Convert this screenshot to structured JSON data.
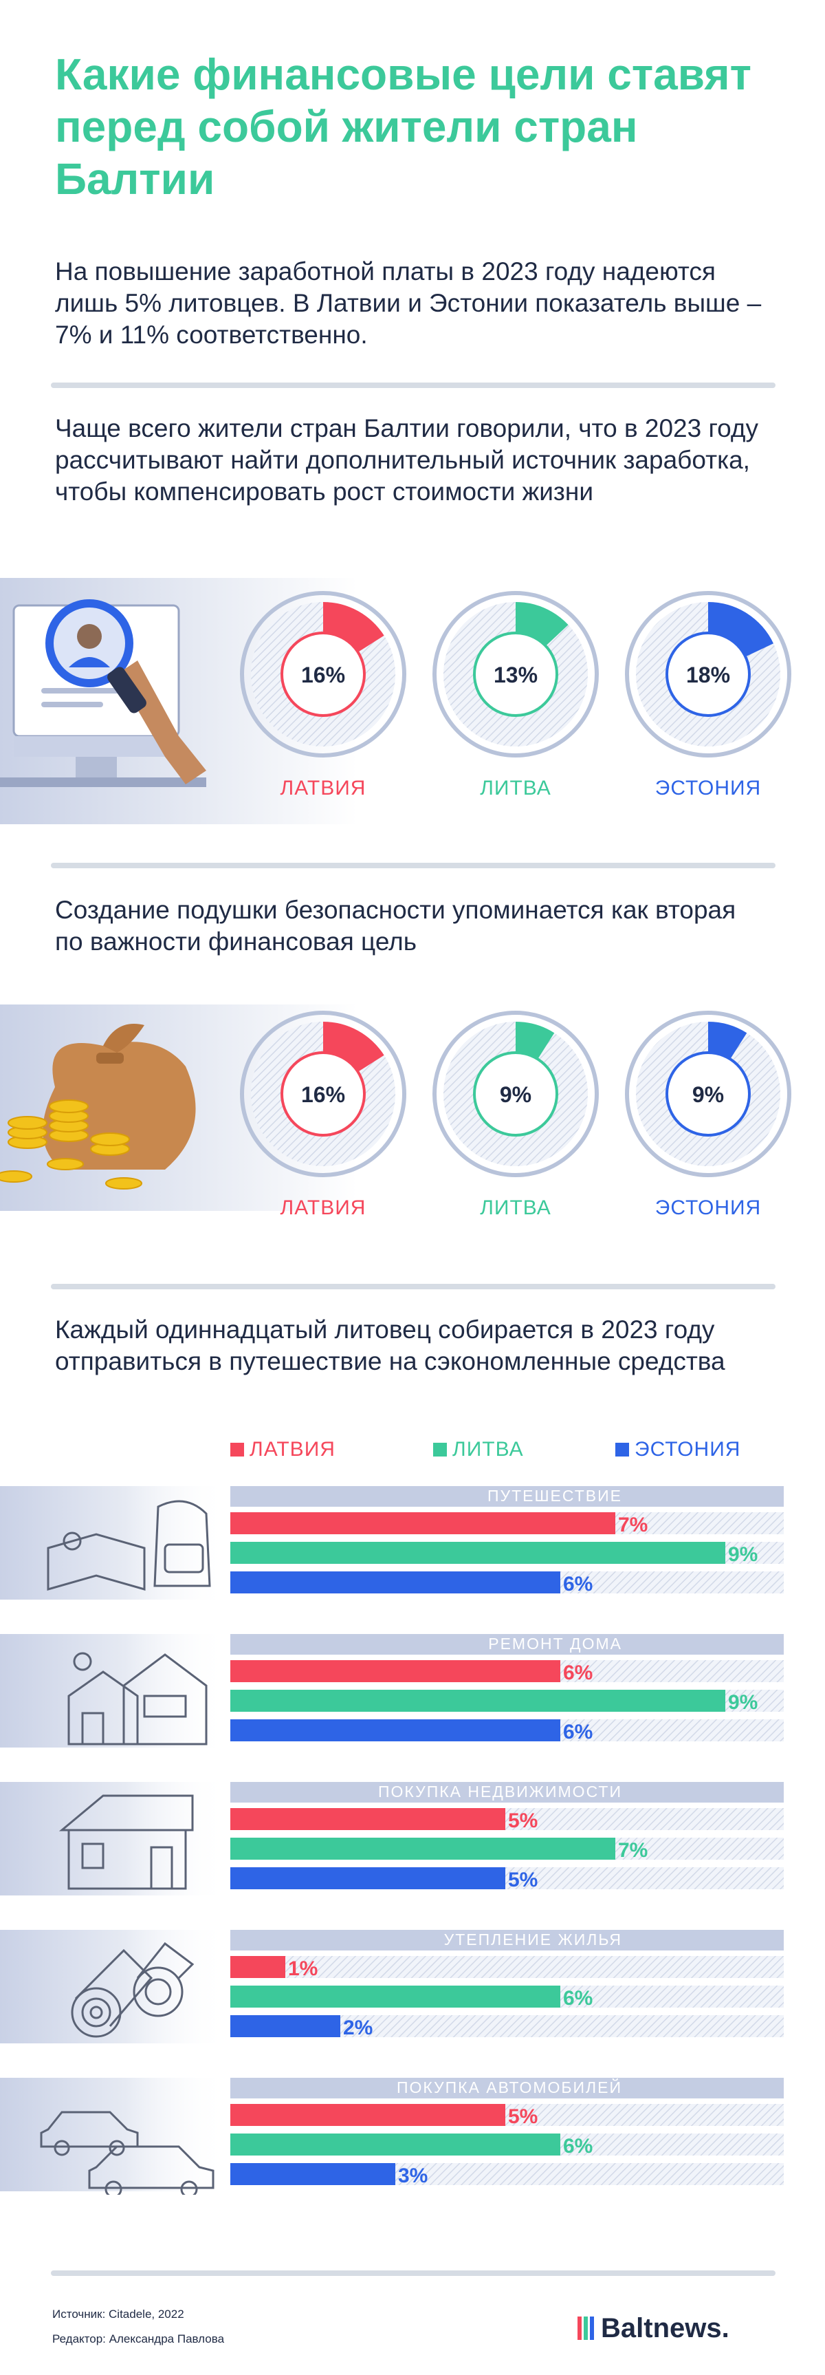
{
  "title": "Какие финансовые цели ставят перед собой жители стран Балтии",
  "lead": "На повышение заработной платы в 2023 году надеются лишь 5% литовцев. В Латвии и Эстонии показатель выше – 7% и 11% соответственно.",
  "section1": {
    "heading": "Чаще всего жители стран Балтии говорили, что в 2023 году рассчитывают найти дополнительный источник заработка, чтобы компенсировать рост стоимости жизни"
  },
  "section2": {
    "heading": "Создание подушки безопасности упоминается как вторая по важности финансовая цель"
  },
  "section3": {
    "heading": "Каждый одиннадцатый литовец собирается в 2023 году отправиться в путешествие на сэкономленные средства"
  },
  "colors": {
    "latvia": "#f5475b",
    "lithuania": "#3cc99a",
    "estonia": "#2e64e6",
    "title": "#3cc99a"
  },
  "legend": [
    "ЛАТВИЯ",
    "ЛИТВА",
    "ЭСТОНИЯ"
  ],
  "chart_data": [
    {
      "type": "pie",
      "categories": [
        "ЛАТВИЯ",
        "ЛИТВА",
        "ЭСТОНИЯ"
      ],
      "values": [
        16,
        13,
        18
      ],
      "value_labels": [
        "16%",
        "13%",
        "18%"
      ]
    },
    {
      "type": "pie",
      "categories": [
        "ЛАТВИЯ",
        "ЛИТВА",
        "ЭСТОНИЯ"
      ],
      "values": [
        16,
        9,
        9
      ],
      "value_labels": [
        "16%",
        "9%",
        "9%"
      ]
    },
    {
      "type": "bar",
      "categories": [
        "ПУТЕШЕСТВИЕ",
        "РЕМОНТ ДОМА",
        "ПОКУПКА НЕДВИЖИМОСТИ",
        "УТЕПЛЕНИЕ ЖИЛЬЯ",
        "ПОКУПКА АВТОМОБИЛЕЙ"
      ],
      "series": [
        {
          "name": "ЛАТВИЯ",
          "values": [
            7,
            6,
            5,
            1,
            5
          ],
          "labels": [
            "7%",
            "6%",
            "5%",
            "1%",
            "5%"
          ]
        },
        {
          "name": "ЛИТВА",
          "values": [
            9,
            9,
            7,
            6,
            6
          ],
          "labels": [
            "9%",
            "9%",
            "7%",
            "6%",
            "6%"
          ]
        },
        {
          "name": "ЭСТОНИЯ",
          "values": [
            6,
            6,
            5,
            2,
            3
          ],
          "labels": [
            "6%",
            "6%",
            "5%",
            "2%",
            "3%"
          ]
        }
      ],
      "xlim": [
        0,
        9
      ]
    }
  ],
  "footer": {
    "source": "Источник: Citadele, 2022",
    "editor": "Редактор: Александра Павлова",
    "logo": "Baltnews."
  }
}
